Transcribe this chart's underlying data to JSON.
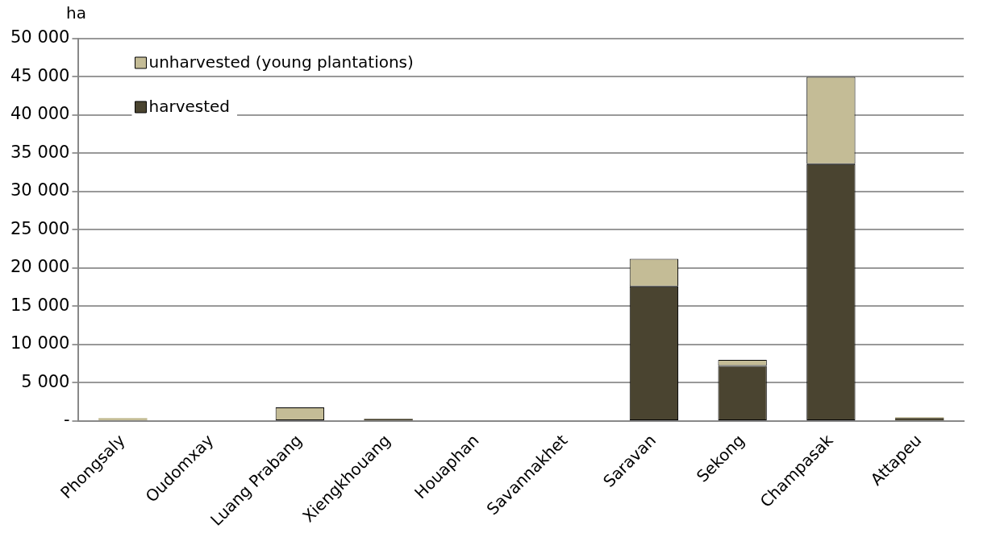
{
  "chart_data": {
    "type": "bar",
    "stacked": true,
    "ylabel": "ha",
    "categories": [
      "Phongsaly",
      "Oudomxay",
      "Luang Prabang",
      "Xiengkhouang",
      "Houaphan",
      "Savannakhet",
      "Saravan",
      "Sekong",
      "Champasak",
      "Attapeu"
    ],
    "series": [
      {
        "name": "harvested",
        "color": "#4a4430",
        "values": [
          100,
          100,
          100,
          300,
          100,
          100,
          17600,
          7200,
          33600,
          400
        ]
      },
      {
        "name": "unharvested (young plantations)",
        "color": "#c4bc96",
        "values": [
          300,
          0,
          1700,
          0,
          0,
          0,
          3600,
          800,
          11400,
          100
        ]
      }
    ],
    "ylim": [
      0,
      50000
    ],
    "yticks": [
      {
        "value": 0,
        "label": "-"
      },
      {
        "value": 5000,
        "label": "5 000"
      },
      {
        "value": 10000,
        "label": "10 000"
      },
      {
        "value": 15000,
        "label": "15 000"
      },
      {
        "value": 20000,
        "label": "20 000"
      },
      {
        "value": 25000,
        "label": "25 000"
      },
      {
        "value": 30000,
        "label": "30 000"
      },
      {
        "value": 35000,
        "label": "35 000"
      },
      {
        "value": 40000,
        "label": "40 000"
      },
      {
        "value": 45000,
        "label": "45 000"
      },
      {
        "value": 50000,
        "label": "50 000"
      }
    ],
    "grid": "y",
    "legend": "top left"
  }
}
